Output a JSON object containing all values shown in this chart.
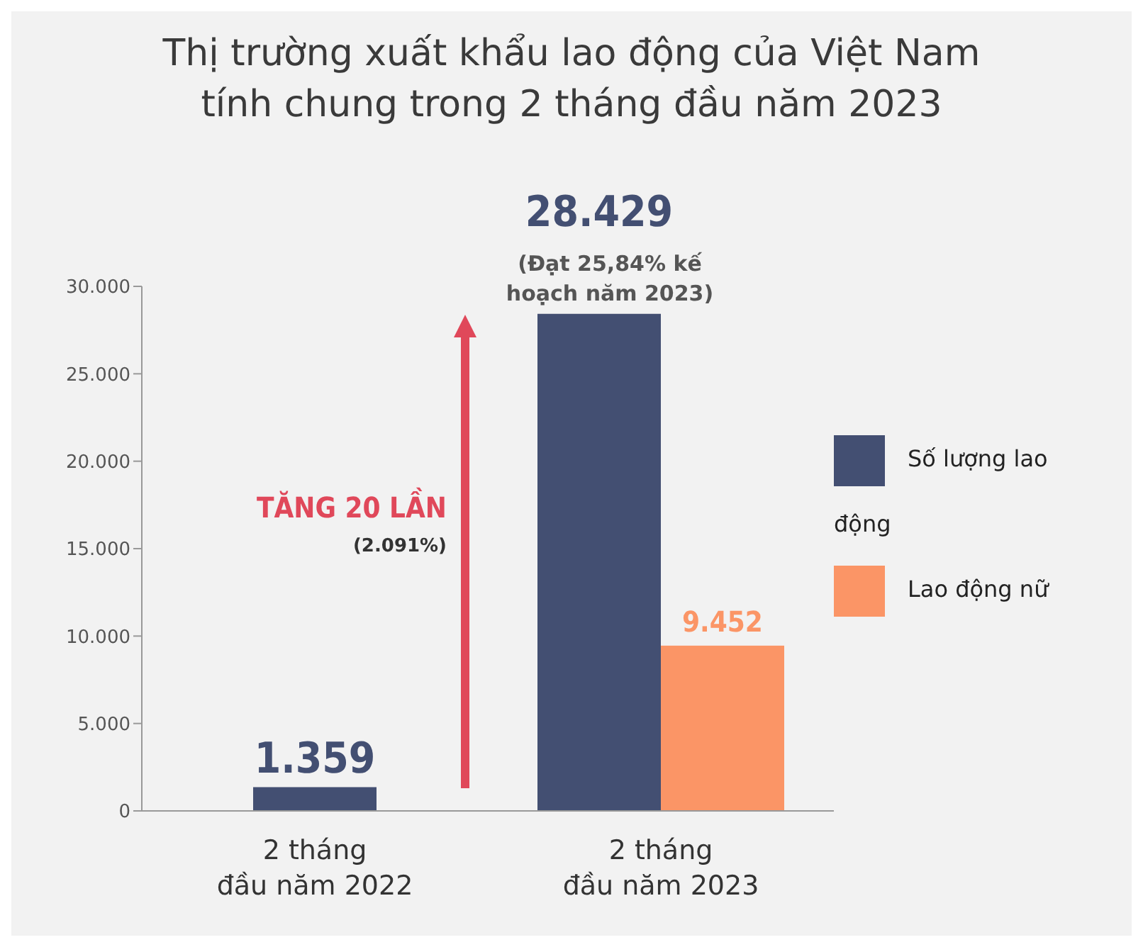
{
  "chart_data": {
    "type": "bar",
    "title": "Thị trường xuất khẩu lao động của Việt Nam tính chung trong 2 tháng đầu năm 2023",
    "categories": [
      "2 tháng đầu năm 2022",
      "2 tháng đầu năm 2023"
    ],
    "series": [
      {
        "name": "Số lượng lao động",
        "color": "#434f72",
        "values": [
          1359,
          28429
        ],
        "value_labels": [
          "1.359",
          "28.429"
        ]
      },
      {
        "name": "Lao động nữ",
        "color": "#fb9566",
        "values": [
          null,
          9452
        ],
        "value_labels": [
          null,
          "9.452"
        ]
      }
    ],
    "ylim": [
      0,
      30000
    ],
    "yticks": [
      {
        "value": 0,
        "label": "0"
      },
      {
        "value": 5000,
        "label": "5.000"
      },
      {
        "value": 10000,
        "label": "10.000"
      },
      {
        "value": 15000,
        "label": "15.000"
      },
      {
        "value": 20000,
        "label": "20.000"
      },
      {
        "value": 25000,
        "label": "25.000"
      },
      {
        "value": 30000,
        "label": "30.000"
      }
    ],
    "annotations": [
      {
        "text": "(Đạt 25,84% kế hoạch năm 2023)",
        "x": "2 tháng đầu năm 2023",
        "y": 28429
      },
      "TĂNG 20 LẦN",
      "(2.091%)"
    ],
    "grid": false,
    "legend": "right"
  }
}
